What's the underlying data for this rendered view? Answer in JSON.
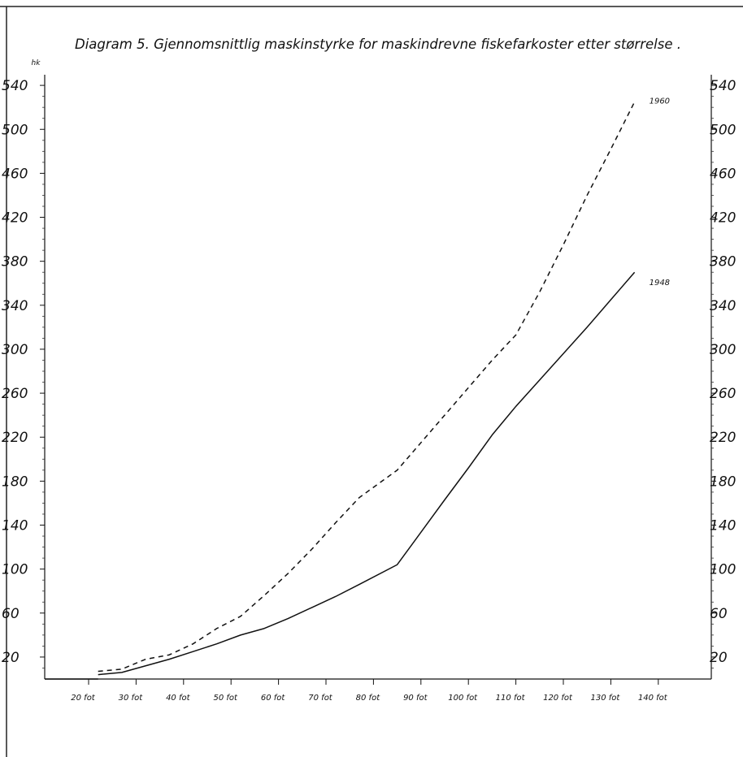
{
  "chart_data": {
    "type": "line",
    "title": "Diagram 5. Gjennomsnittlig maskinstyrke for maskindrevne fiskefarkoster etter størrelse .",
    "ylabel": "hk",
    "xlabel": "",
    "x_tick_labels": [
      "20 fot",
      "30 fot",
      "40 fot",
      "50 fot",
      "60 fot",
      "70 fot",
      "80 fot",
      "90 fot",
      "100 fot",
      "110 fot",
      "120 fot",
      "130 fot",
      "140 fot"
    ],
    "x_tick_values": [
      20,
      30,
      40,
      50,
      60,
      70,
      80,
      90,
      100,
      110,
      120,
      130,
      140
    ],
    "y_tick_labels": [
      "20",
      "60",
      "100",
      "140",
      "180",
      "220",
      "260",
      "300",
      "340",
      "380",
      "420",
      "460",
      "500",
      "540"
    ],
    "y_tick_values": [
      20,
      60,
      100,
      140,
      180,
      220,
      260,
      300,
      340,
      380,
      420,
      460,
      500,
      540
    ],
    "right_y_tick_labels": [
      "20",
      "60",
      "100",
      "140",
      "180",
      "220",
      "260",
      "300",
      "340",
      "380",
      "420",
      "460",
      "500",
      "540"
    ],
    "xlim": [
      20,
      140
    ],
    "ylim": [
      0,
      540
    ],
    "grid": false,
    "series": [
      {
        "name": "1960",
        "style": "dashed",
        "x": [
          22,
          27,
          32,
          37,
          42,
          47,
          52,
          57,
          62,
          67,
          72,
          77,
          85,
          95,
          105,
          110,
          115,
          120,
          125,
          130,
          135
        ],
        "y": [
          7,
          9,
          18,
          22,
          32,
          46,
          57,
          76,
          96,
          118,
          142,
          165,
          190,
          240,
          290,
          313,
          352,
          395,
          440,
          482,
          525
        ]
      },
      {
        "name": "1948",
        "style": "solid",
        "x": [
          22,
          27,
          32,
          37,
          42,
          47,
          52,
          57,
          62,
          67,
          72,
          77,
          85,
          95,
          100,
          105,
          110,
          115,
          120,
          125,
          130,
          135
        ],
        "y": [
          4,
          6,
          12,
          18,
          25,
          32,
          40,
          46,
          55,
          65,
          75,
          86,
          104,
          163,
          192,
          222,
          248,
          272,
          296,
          320,
          345,
          370
        ]
      }
    ]
  }
}
